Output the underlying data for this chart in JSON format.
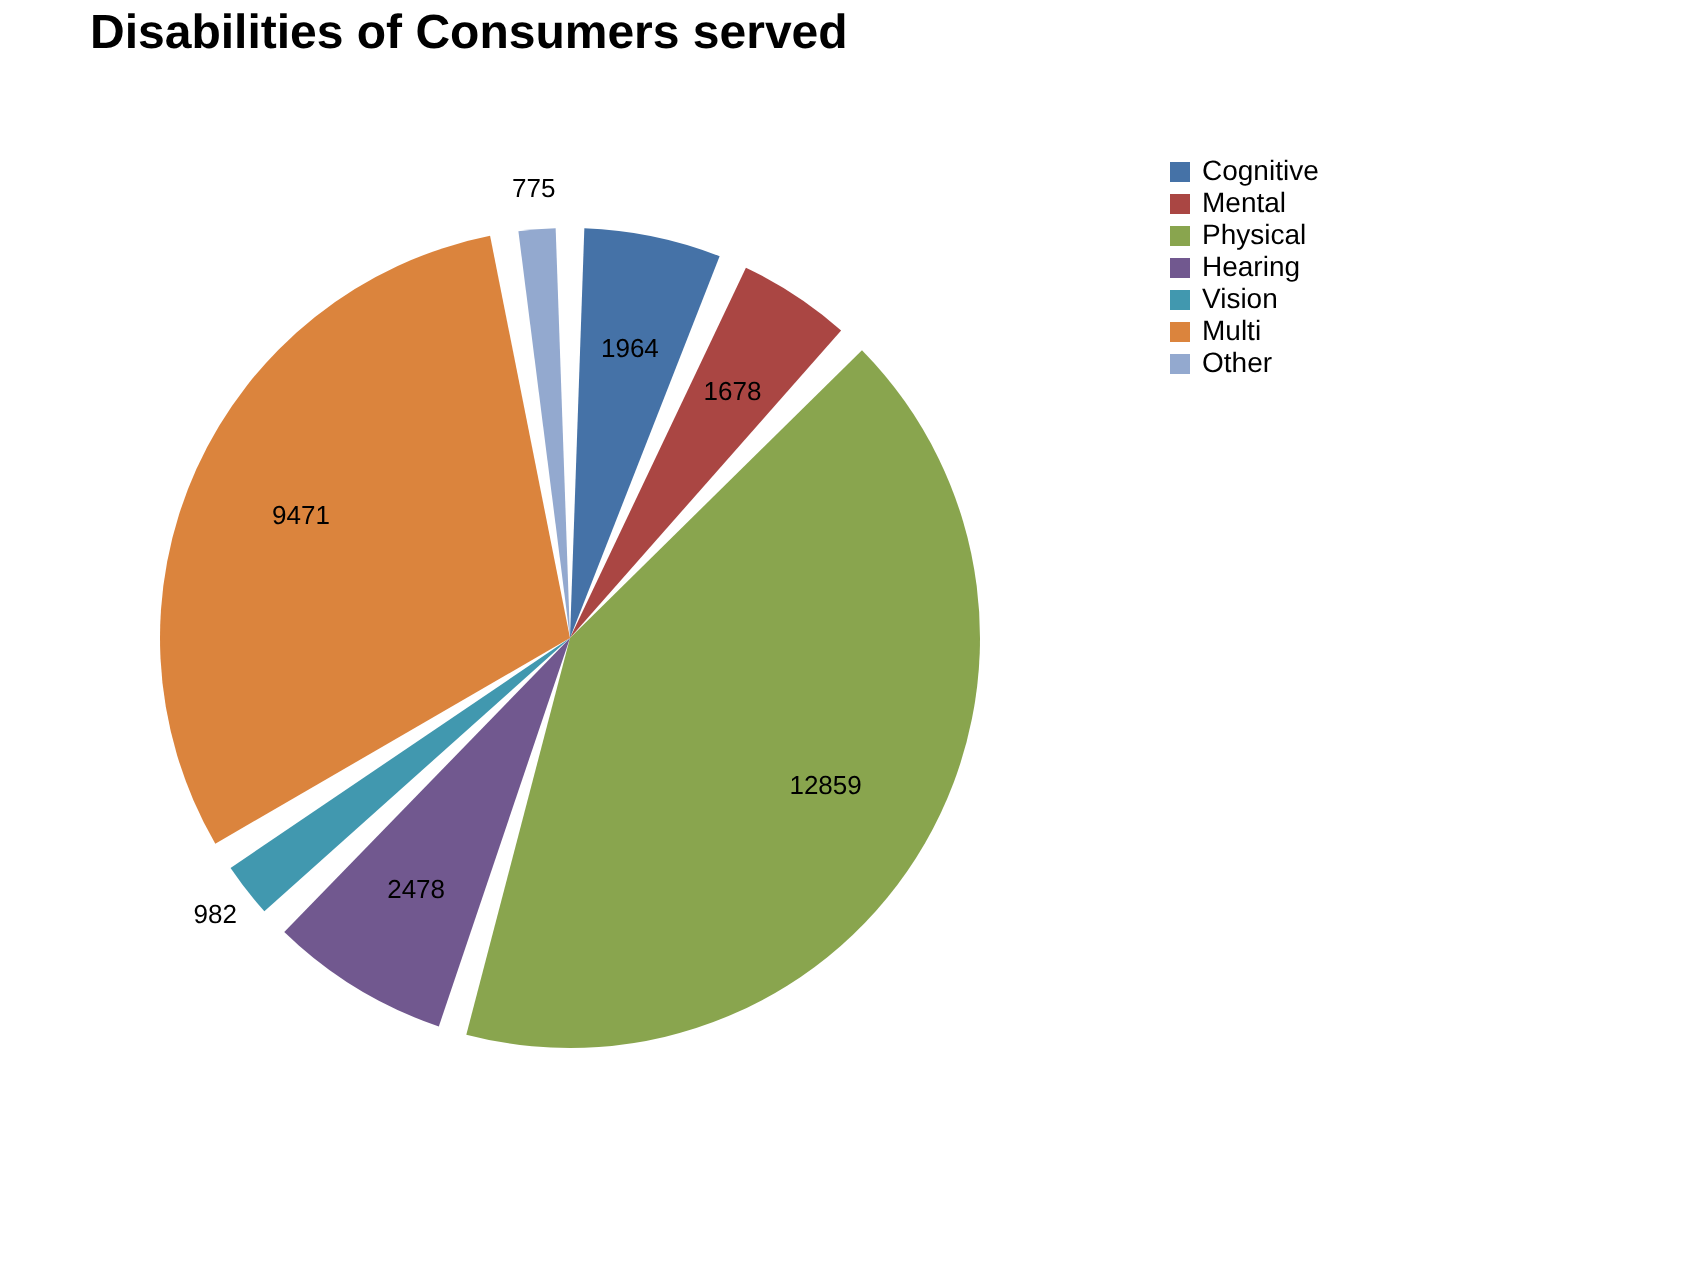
{
  "chart_data": {
    "type": "pie",
    "title": "Disabilities of Consumers served",
    "categories": [
      "Cognitive",
      "Mental",
      "Physical",
      "Hearing",
      "Vision",
      "Multi",
      "Other"
    ],
    "values": [
      1964,
      1678,
      12859,
      2478,
      982,
      9471,
      775
    ],
    "colors": [
      "#4572a7",
      "#aa4643",
      "#89a54e",
      "#71588f",
      "#4198af",
      "#db843d",
      "#93a9cf"
    ],
    "data_labels": true,
    "legend": "right"
  }
}
